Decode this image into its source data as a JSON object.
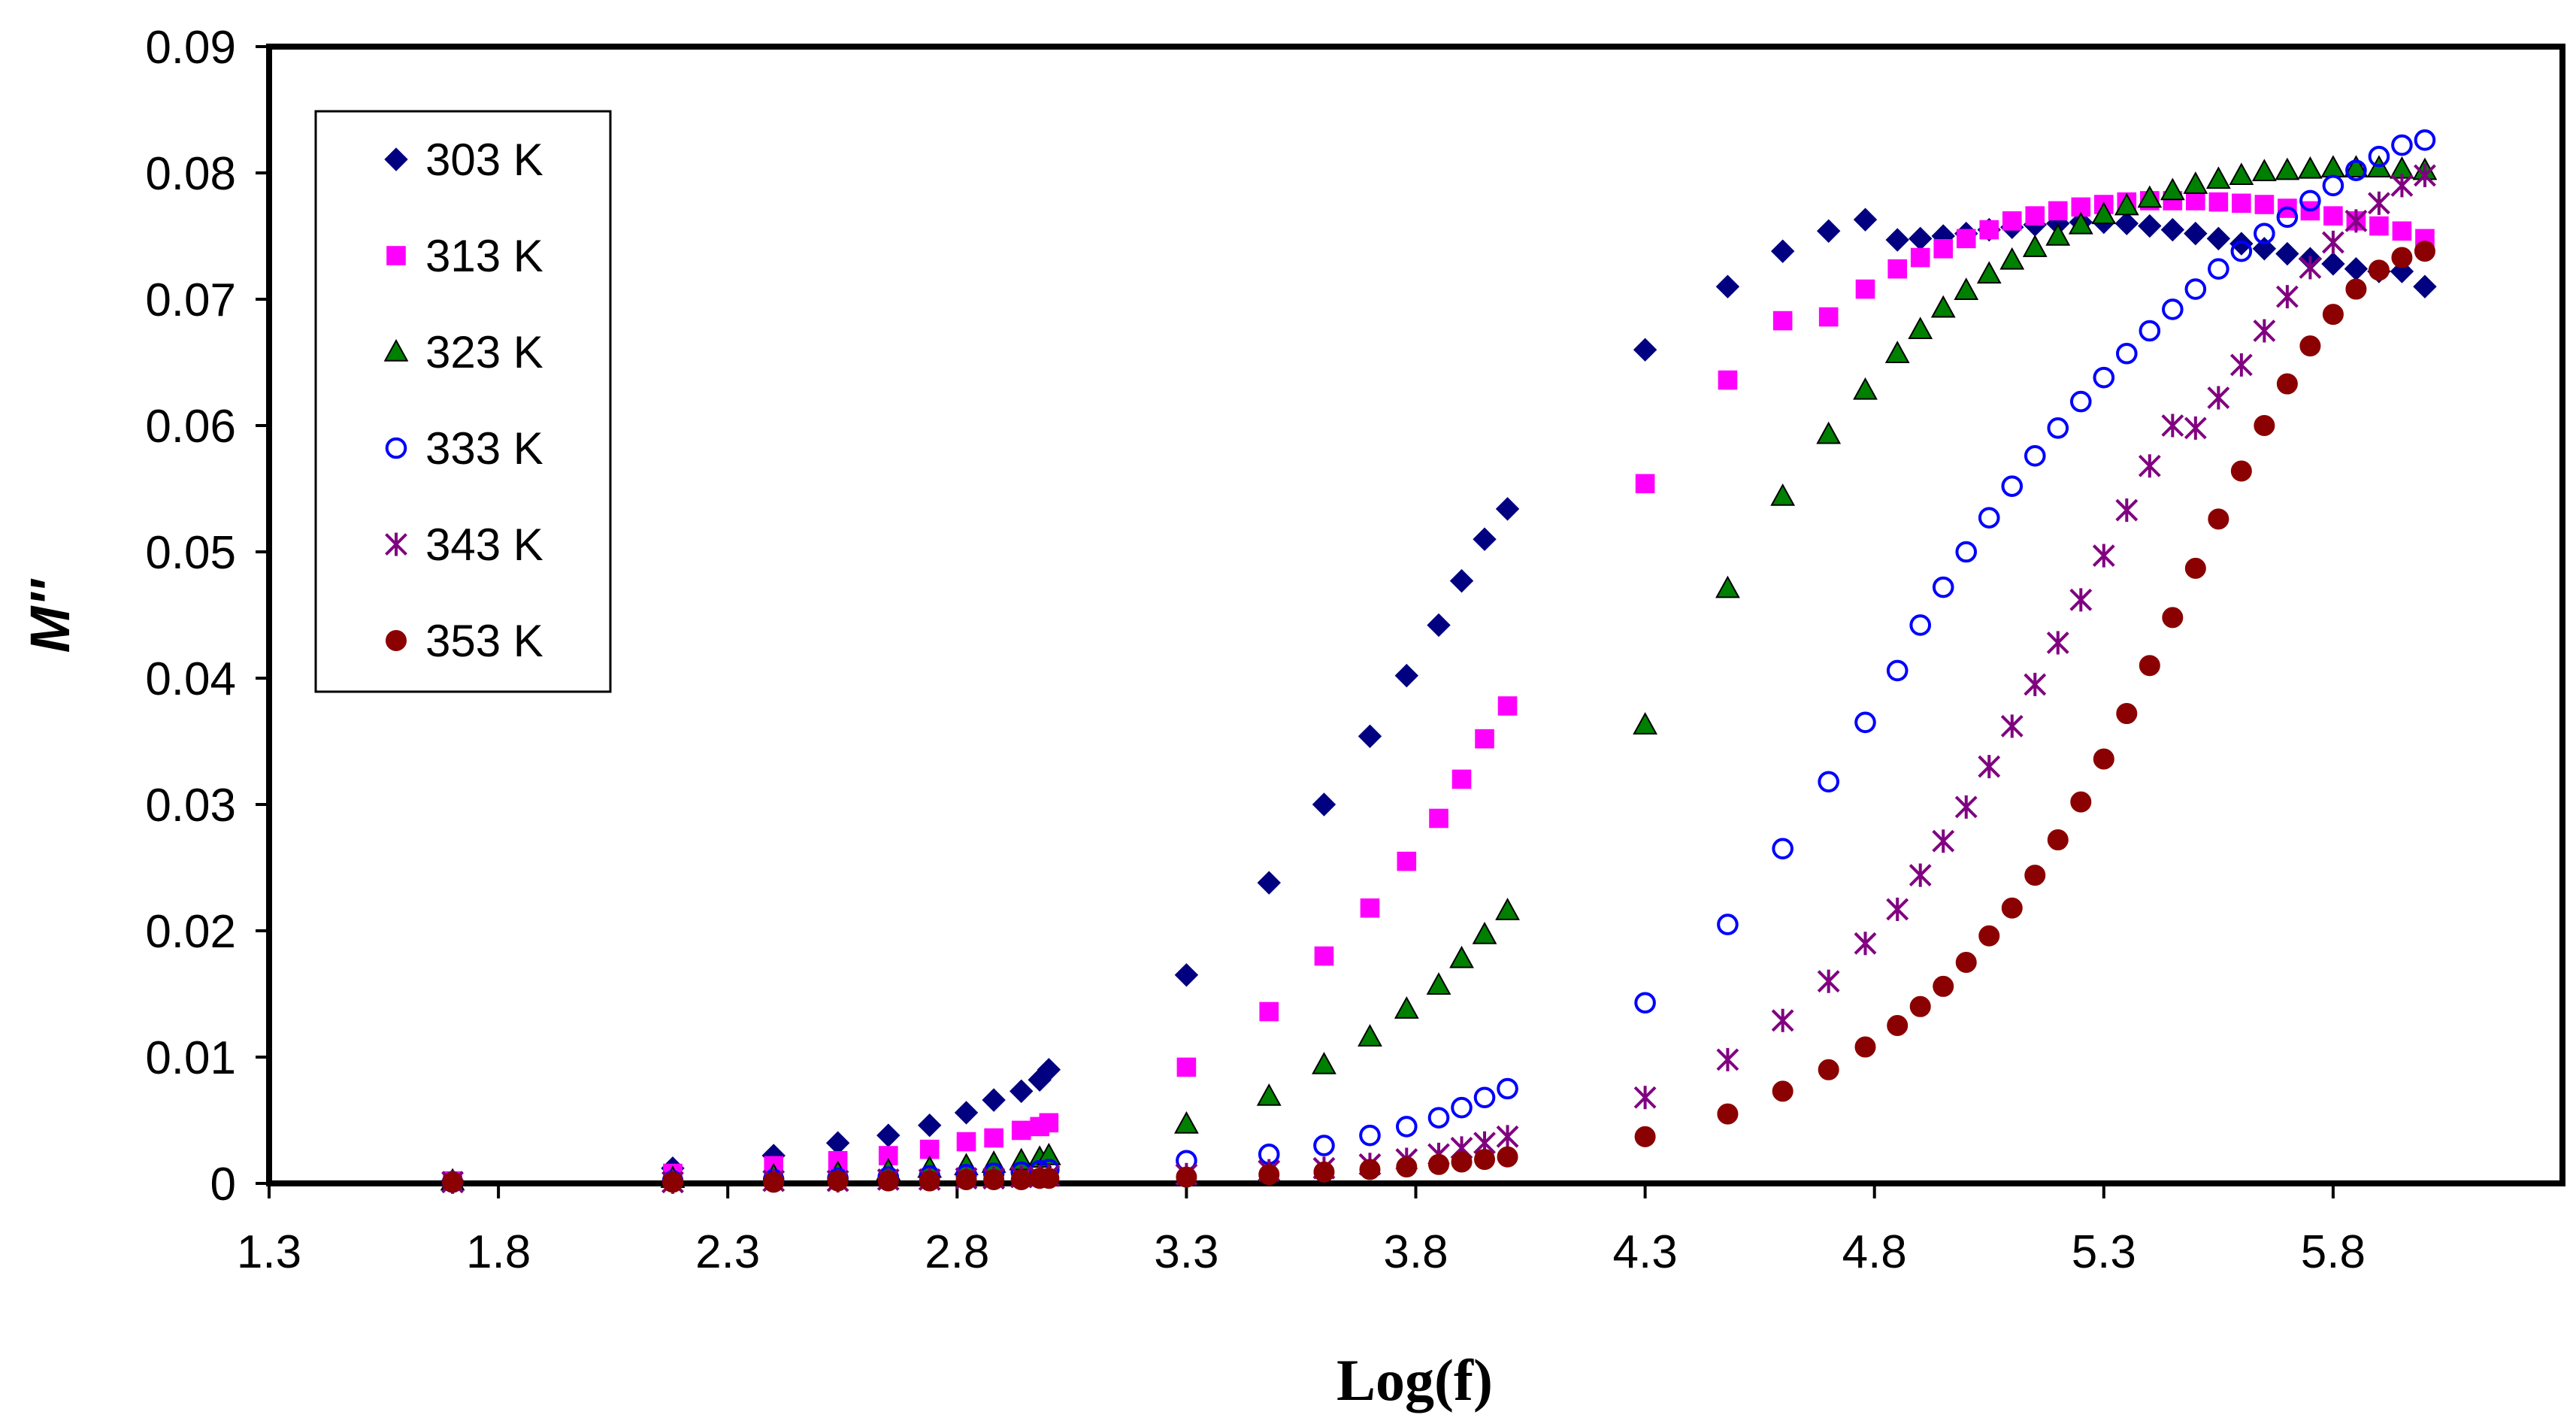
{
  "chart_data": {
    "type": "scatter",
    "title": "",
    "xlabel": "Log(f)",
    "ylabel": "M''",
    "xlim": [
      1.3,
      6.3
    ],
    "ylim": [
      0,
      0.09
    ],
    "x_ticks": [
      "1.3",
      "1.8",
      "2.3",
      "2.8",
      "3.3",
      "3.8",
      "4.3",
      "4.8",
      "5.3",
      "5.8"
    ],
    "y_ticks": [
      "0",
      "0.01",
      "0.02",
      "0.03",
      "0.04",
      "0.05",
      "0.06",
      "0.07",
      "0.08",
      "0.09"
    ],
    "grid": false,
    "legend_position": "top-left",
    "series": [
      {
        "name": "303 K",
        "marker": "diamond",
        "color": "#000080",
        "x": [
          1.7,
          2.18,
          2.4,
          2.54,
          2.65,
          2.74,
          2.82,
          2.88,
          2.94,
          2.98,
          3.0,
          3.3,
          3.48,
          3.6,
          3.7,
          3.78,
          3.85,
          3.9,
          3.95,
          4.0,
          4.3,
          4.48,
          4.6,
          4.7,
          4.78,
          4.85,
          4.9,
          4.95,
          5.0,
          5.05,
          5.1,
          5.15,
          5.2,
          5.25,
          5.3,
          5.35,
          5.4,
          5.45,
          5.5,
          5.55,
          5.6,
          5.65,
          5.7,
          5.75,
          5.8,
          5.85,
          5.9,
          5.95,
          6.0
        ],
        "y": [
          0.0002,
          0.0012,
          0.0022,
          0.0032,
          0.0038,
          0.0046,
          0.0056,
          0.0066,
          0.0073,
          0.0082,
          0.009,
          0.0165,
          0.0238,
          0.03,
          0.0354,
          0.0402,
          0.0442,
          0.0477,
          0.051,
          0.0534,
          0.066,
          0.071,
          0.0738,
          0.0754,
          0.0763,
          0.0747,
          0.0748,
          0.075,
          0.0752,
          0.0755,
          0.0757,
          0.0759,
          0.076,
          0.0761,
          0.0761,
          0.076,
          0.0758,
          0.0755,
          0.0752,
          0.0748,
          0.0744,
          0.074,
          0.0736,
          0.0732,
          0.0728,
          0.0724,
          0.0722,
          0.0722,
          0.071
        ]
      },
      {
        "name": "313 K",
        "marker": "square",
        "color": "#ff00ff",
        "x": [
          1.7,
          2.18,
          2.4,
          2.54,
          2.65,
          2.74,
          2.82,
          2.88,
          2.94,
          2.98,
          3.0,
          3.3,
          3.48,
          3.6,
          3.7,
          3.78,
          3.85,
          3.9,
          3.95,
          4.0,
          4.3,
          4.48,
          4.6,
          4.7,
          4.78,
          4.85,
          4.9,
          4.95,
          5.0,
          5.05,
          5.1,
          5.15,
          5.2,
          5.25,
          5.3,
          5.35,
          5.4,
          5.45,
          5.5,
          5.55,
          5.6,
          5.65,
          5.7,
          5.75,
          5.8,
          5.85,
          5.9,
          5.95,
          6.0
        ],
        "y": [
          0.0002,
          0.0008,
          0.0014,
          0.0018,
          0.0022,
          0.0027,
          0.0033,
          0.0036,
          0.0042,
          0.0045,
          0.0048,
          0.0092,
          0.0136,
          0.018,
          0.0218,
          0.0255,
          0.0289,
          0.032,
          0.0352,
          0.0378,
          0.0554,
          0.0636,
          0.0683,
          0.0686,
          0.0708,
          0.0724,
          0.0733,
          0.074,
          0.0748,
          0.0755,
          0.0762,
          0.0766,
          0.077,
          0.0773,
          0.0775,
          0.0777,
          0.0778,
          0.0778,
          0.0778,
          0.0777,
          0.0776,
          0.0775,
          0.0772,
          0.077,
          0.0766,
          0.0762,
          0.0758,
          0.0754,
          0.0748
        ]
      },
      {
        "name": "323 K",
        "marker": "triangle",
        "color": "#008000",
        "x": [
          1.7,
          2.18,
          2.4,
          2.54,
          2.65,
          2.74,
          2.82,
          2.88,
          2.94,
          2.98,
          3.0,
          3.3,
          3.48,
          3.6,
          3.7,
          3.78,
          3.85,
          3.9,
          3.95,
          4.0,
          4.3,
          4.48,
          4.6,
          4.7,
          4.78,
          4.85,
          4.9,
          4.95,
          5.0,
          5.05,
          5.1,
          5.15,
          5.2,
          5.25,
          5.3,
          5.35,
          5.4,
          5.45,
          5.5,
          5.55,
          5.6,
          5.65,
          5.7,
          5.75,
          5.8,
          5.85,
          5.9,
          5.95,
          6.0
        ],
        "y": [
          0.0002,
          0.0004,
          0.0006,
          0.0008,
          0.001,
          0.0012,
          0.0014,
          0.0016,
          0.0018,
          0.002,
          0.0022,
          0.0047,
          0.0069,
          0.0094,
          0.0116,
          0.0138,
          0.0157,
          0.0178,
          0.0197,
          0.0216,
          0.0363,
          0.0471,
          0.0544,
          0.0593,
          0.0628,
          0.0657,
          0.0676,
          0.0693,
          0.0707,
          0.072,
          0.0731,
          0.0741,
          0.075,
          0.0759,
          0.0767,
          0.0774,
          0.078,
          0.0786,
          0.0791,
          0.0795,
          0.0798,
          0.0801,
          0.0802,
          0.0803,
          0.0804,
          0.0804,
          0.0804,
          0.0803,
          0.0802
        ]
      },
      {
        "name": "333 K",
        "marker": "circle-open",
        "color": "#0000ff",
        "x": [
          1.7,
          2.18,
          2.4,
          2.54,
          2.65,
          2.74,
          2.82,
          2.88,
          2.94,
          2.98,
          3.0,
          3.3,
          3.48,
          3.6,
          3.7,
          3.78,
          3.85,
          3.9,
          3.95,
          4.0,
          4.3,
          4.48,
          4.6,
          4.7,
          4.78,
          4.85,
          4.9,
          4.95,
          5.0,
          5.05,
          5.1,
          5.15,
          5.2,
          5.25,
          5.3,
          5.35,
          5.4,
          5.45,
          5.5,
          5.55,
          5.6,
          5.65,
          5.7,
          5.75,
          5.8,
          5.85,
          5.9,
          5.95,
          6.0
        ],
        "y": [
          0.0001,
          0.0002,
          0.0003,
          0.0004,
          0.0005,
          0.0006,
          0.0007,
          0.0008,
          0.0009,
          0.001,
          0.0011,
          0.0018,
          0.0023,
          0.003,
          0.0038,
          0.0045,
          0.0052,
          0.006,
          0.0068,
          0.0075,
          0.0143,
          0.0205,
          0.0265,
          0.0318,
          0.0365,
          0.0406,
          0.0442,
          0.0472,
          0.05,
          0.0527,
          0.0552,
          0.0576,
          0.0598,
          0.0619,
          0.0638,
          0.0657,
          0.0675,
          0.0692,
          0.0708,
          0.0724,
          0.0738,
          0.0752,
          0.0765,
          0.0778,
          0.079,
          0.0802,
          0.0813,
          0.0822,
          0.0826
        ]
      },
      {
        "name": "343 K",
        "marker": "star",
        "color": "#800080",
        "x": [
          1.7,
          2.18,
          2.4,
          2.54,
          2.65,
          2.74,
          2.82,
          2.88,
          2.94,
          2.98,
          3.0,
          3.3,
          3.48,
          3.6,
          3.7,
          3.78,
          3.85,
          3.9,
          3.95,
          4.0,
          4.3,
          4.48,
          4.6,
          4.7,
          4.78,
          4.85,
          4.9,
          4.95,
          5.0,
          5.05,
          5.1,
          5.15,
          5.2,
          5.25,
          5.3,
          5.35,
          5.4,
          5.45,
          5.5,
          5.55,
          5.6,
          5.65,
          5.7,
          5.75,
          5.8,
          5.85,
          5.9,
          5.95,
          6.0
        ],
        "y": [
          0.0001,
          0.0001,
          0.0002,
          0.0002,
          0.0003,
          0.0003,
          0.0004,
          0.0004,
          0.0005,
          0.0005,
          0.0006,
          0.0007,
          0.001,
          0.0012,
          0.0015,
          0.0019,
          0.0023,
          0.0028,
          0.0032,
          0.0037,
          0.0068,
          0.0098,
          0.0129,
          0.016,
          0.019,
          0.0217,
          0.0244,
          0.0271,
          0.0298,
          0.033,
          0.0362,
          0.0395,
          0.0428,
          0.0462,
          0.0497,
          0.0533,
          0.0568,
          0.06,
          0.0598,
          0.0622,
          0.0648,
          0.0675,
          0.0702,
          0.0725,
          0.0745,
          0.0762,
          0.0776,
          0.079,
          0.0798
        ]
      },
      {
        "name": "353 K",
        "marker": "circle-filled",
        "color": "#8b0000",
        "x": [
          1.7,
          2.18,
          2.4,
          2.54,
          2.65,
          2.74,
          2.82,
          2.88,
          2.94,
          2.98,
          3.0,
          3.3,
          3.48,
          3.6,
          3.7,
          3.78,
          3.85,
          3.9,
          3.95,
          4.0,
          4.3,
          4.48,
          4.6,
          4.7,
          4.78,
          4.85,
          4.9,
          4.95,
          5.0,
          5.05,
          5.1,
          5.15,
          5.2,
          5.25,
          5.3,
          5.35,
          5.4,
          5.45,
          5.5,
          5.55,
          5.6,
          5.65,
          5.7,
          5.75,
          5.8,
          5.85,
          5.9,
          5.95,
          6.0
        ],
        "y": [
          0.0001,
          0.0001,
          0.0001,
          0.0002,
          0.0002,
          0.0002,
          0.0003,
          0.0003,
          0.0003,
          0.0004,
          0.0004,
          0.0005,
          0.0007,
          0.0009,
          0.0011,
          0.0013,
          0.0015,
          0.0017,
          0.0019,
          0.0021,
          0.0037,
          0.0055,
          0.0073,
          0.009,
          0.0108,
          0.0125,
          0.014,
          0.0156,
          0.0175,
          0.0196,
          0.0218,
          0.0244,
          0.0272,
          0.0302,
          0.0336,
          0.0372,
          0.041,
          0.0448,
          0.0487,
          0.0526,
          0.0564,
          0.06,
          0.0633,
          0.0663,
          0.0688,
          0.0708,
          0.0723,
          0.0733,
          0.0738
        ]
      }
    ]
  }
}
